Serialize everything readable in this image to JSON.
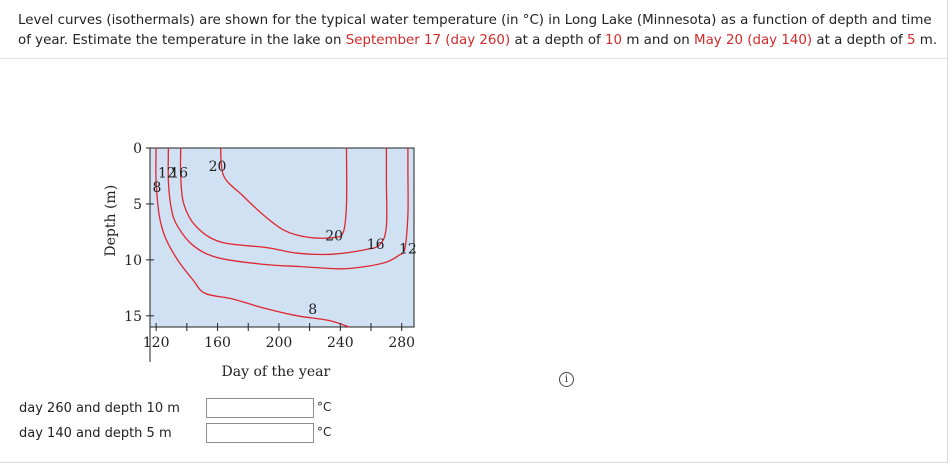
{
  "problem": {
    "text_1": "Level curves (isothermals) are shown for the typical water temperature (in °C) in Long Lake (Minnesota) as a function of depth and time of year. Estimate the temperature in the lake on ",
    "date_1": "September 17 (day 260)",
    "text_2": " at a depth of ",
    "depth_1": "10",
    "text_3": " m and on ",
    "date_2": "May 20 (day 140)",
    "text_4": " at a depth of ",
    "depth_2": "5",
    "text_5": " m."
  },
  "chart_data": {
    "type": "contour",
    "title": "",
    "xlabel": "Day of the year",
    "ylabel": "Depth (m)",
    "xlim": [
      116,
      288
    ],
    "ylim": [
      0,
      16
    ],
    "x_ticks": [
      "120",
      "160",
      "200",
      "240",
      "280"
    ],
    "y_ticks": [
      "0",
      "5",
      "10",
      "15"
    ],
    "background": "#cfe1f3",
    "line_color": "#e0262e",
    "contours": [
      {
        "label": "8",
        "points": [
          [
            120,
            0
          ],
          [
            120,
            3
          ],
          [
            122,
            6
          ],
          [
            126,
            8
          ],
          [
            134,
            10
          ],
          [
            144,
            11.8
          ],
          [
            152,
            13
          ],
          [
            170,
            13.5
          ],
          [
            190,
            14.3
          ],
          [
            212,
            15
          ],
          [
            232,
            15.4
          ],
          [
            246,
            16
          ]
        ]
      },
      {
        "label": "12",
        "points": [
          [
            128,
            0
          ],
          [
            128,
            3
          ],
          [
            130,
            5.5
          ],
          [
            134,
            7
          ],
          [
            144,
            8.7
          ],
          [
            160,
            9.8
          ],
          [
            190,
            10.4
          ],
          [
            214,
            10.6
          ],
          [
            240,
            10.8
          ],
          [
            256,
            10.6
          ],
          [
            270,
            10.2
          ],
          [
            278,
            9.6
          ],
          [
            282,
            9
          ],
          [
            284,
            6
          ],
          [
            284,
            2
          ],
          [
            284,
            0
          ]
        ]
      },
      {
        "label": "16",
        "points": [
          [
            136,
            0
          ],
          [
            136,
            2.5
          ],
          [
            138,
            5
          ],
          [
            146,
            7
          ],
          [
            162,
            8.4
          ],
          [
            192,
            8.9
          ],
          [
            212,
            9.4
          ],
          [
            234,
            9.5
          ],
          [
            256,
            9.1
          ],
          [
            266,
            8.6
          ],
          [
            270,
            7
          ],
          [
            270,
            3
          ],
          [
            270,
            0
          ]
        ]
      },
      {
        "label": "20",
        "points": [
          [
            162,
            0
          ],
          [
            164,
            2.5
          ],
          [
            176,
            4.2
          ],
          [
            190,
            6
          ],
          [
            204,
            7.4
          ],
          [
            220,
            8
          ],
          [
            236,
            8
          ],
          [
            242,
            7.5
          ],
          [
            244,
            5
          ],
          [
            244,
            0
          ]
        ]
      }
    ]
  },
  "answers": [
    {
      "label": "day 260 and depth 10 m",
      "value": "",
      "unit": "°C"
    },
    {
      "label": "day 140 and depth 5 m",
      "value": "",
      "unit": "°C"
    }
  ],
  "info_icon": "i"
}
